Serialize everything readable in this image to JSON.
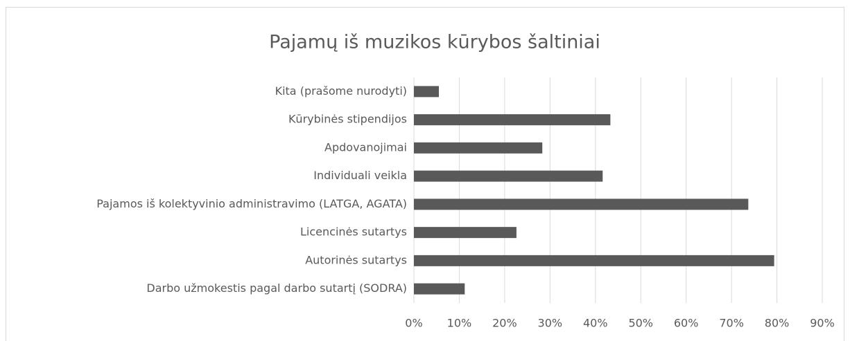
{
  "chart_data": {
    "type": "barh",
    "title": "Pajamų iš muzikos kūrybos šaltiniai",
    "categories": [
      "Kita (prašome nurodyti)",
      "Kūrybinės stipendijos",
      "Apdovanojimai",
      "Individuali veikla",
      "Pajamos iš kolektyvinio administravimo (LATGA, AGATA)",
      "Licencinės sutartys",
      "Autorinės sutartys",
      "Darbo užmokestis pagal darbo sutartį (SODRA)"
    ],
    "values": [
      5.5,
      43.3,
      28.3,
      41.6,
      73.7,
      22.6,
      79.4,
      11.2
    ],
    "color": "#595959",
    "xlim": [
      0,
      90
    ],
    "xticks": [
      {
        "value": 0,
        "label": "0%"
      },
      {
        "value": 10,
        "label": "10%"
      },
      {
        "value": 20,
        "label": "20%"
      },
      {
        "value": 30,
        "label": "30%"
      },
      {
        "value": 40,
        "label": "40%"
      },
      {
        "value": 50,
        "label": "50%"
      },
      {
        "value": 60,
        "label": "60%"
      },
      {
        "value": 70,
        "label": "70%"
      },
      {
        "value": 80,
        "label": "80%"
      },
      {
        "value": 90,
        "label": "90%"
      }
    ],
    "grid": true
  }
}
